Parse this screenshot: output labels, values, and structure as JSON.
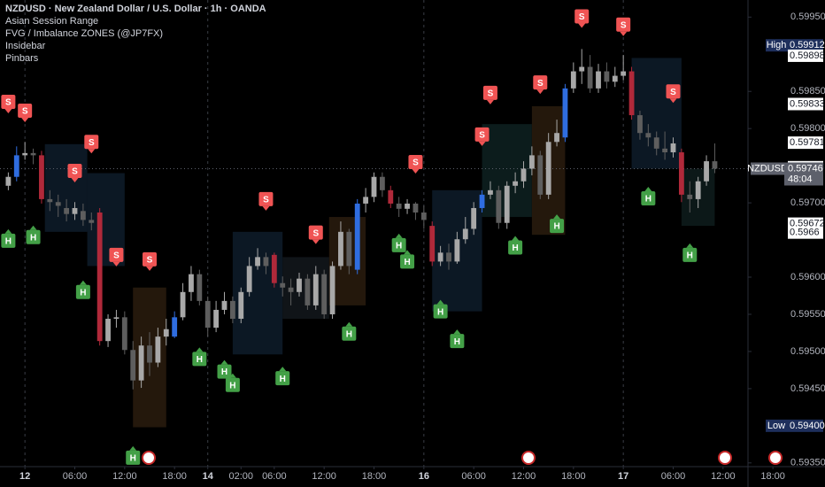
{
  "chart_data": {
    "type": "candlestick",
    "legend": [
      "NZDUSD · New Zealand Dollar / U.S. Dollar · 1h · OANDA",
      "Asian Session Range",
      "FVG / Imbalance ZONES (@JP7FX)",
      "Insidebar",
      "Pinbars"
    ],
    "xlim": [
      -1,
      89
    ],
    "ylim": [
      0.59345,
      0.59973
    ],
    "grid": false,
    "up_color": "#a8a8a8",
    "down_color": "#5e5e5e",
    "blue_color": "#2f6de0",
    "red_color": "#b0293a",
    "blue_candles": [
      1,
      20,
      42,
      57,
      67
    ],
    "red_candles": [
      4,
      11,
      32,
      46,
      51,
      75,
      81
    ],
    "open": [
      0.59723,
      0.59735,
      0.59764,
      0.59767,
      0.59764,
      0.59705,
      0.59701,
      0.59693,
      0.59685,
      0.59689,
      0.59677,
      0.59687,
      0.59514,
      0.59544,
      0.59546,
      0.59502,
      0.59461,
      0.59508,
      0.59485,
      0.5952,
      0.5952,
      0.59546,
      0.5958,
      0.59604,
      0.59568,
      0.59532,
      0.59556,
      0.59568,
      0.59544,
      0.5958,
      0.59615,
      0.59627,
      0.5963,
      0.59592,
      0.59586,
      0.5958,
      0.59598,
      0.59562,
      0.59604,
      0.5955,
      0.59615,
      0.59661,
      0.5961,
      0.59699,
      0.59708,
      0.59735,
      0.59717,
      0.59699,
      0.59692,
      0.59699,
      0.59687,
      0.59669,
      0.59621,
      0.59633,
      0.59621,
      0.59651,
      0.59665,
      0.59693,
      0.59711,
      0.59717,
      0.59673,
      0.59723,
      0.59729,
      0.59746,
      0.59764,
      0.59711,
      0.59782,
      0.59788,
      0.59854,
      0.59877,
      0.59883,
      0.59854,
      0.59877,
      0.59863,
      0.59871,
      0.59877,
      0.59818,
      0.59794,
      0.59788,
      0.59773,
      0.59768,
      0.59768,
      0.59711,
      0.59705,
      0.59729,
      0.59756
    ],
    "high": [
      0.59741,
      0.59776,
      0.59782,
      0.59773,
      0.5977,
      0.59717,
      0.59711,
      0.59705,
      0.59701,
      0.59699,
      0.59687,
      0.59693,
      0.5955,
      0.59556,
      0.59554,
      0.59514,
      0.5952,
      0.59526,
      0.59532,
      0.59544,
      0.59554,
      0.59592,
      0.59615,
      0.5961,
      0.59574,
      0.59568,
      0.5958,
      0.59574,
      0.59586,
      0.59627,
      0.59639,
      0.59633,
      0.59633,
      0.59601,
      0.59598,
      0.59606,
      0.59604,
      0.59615,
      0.5961,
      0.59621,
      0.59675,
      0.59665,
      0.59705,
      0.5972,
      0.59741,
      0.59741,
      0.59723,
      0.59708,
      0.59705,
      0.59701,
      0.59696,
      0.59675,
      0.59642,
      0.59645,
      0.59661,
      0.59681,
      0.59701,
      0.59717,
      0.59729,
      0.59723,
      0.59729,
      0.59741,
      0.59756,
      0.59776,
      0.5977,
      0.59794,
      0.59812,
      0.5986,
      0.59889,
      0.59907,
      0.59899,
      0.59887,
      0.59889,
      0.59883,
      0.59899,
      0.59883,
      0.59824,
      0.59806,
      0.59796,
      0.59796,
      0.59788,
      0.59773,
      0.59729,
      0.59735,
      0.59764,
      0.5978
    ],
    "low": [
      0.59717,
      0.59729,
      0.59758,
      0.59752,
      0.59699,
      0.59689,
      0.59681,
      0.59675,
      0.59677,
      0.59669,
      0.59663,
      0.59508,
      0.59506,
      0.59532,
      0.59496,
      0.59449,
      0.59451,
      0.59467,
      0.59479,
      0.59508,
      0.59518,
      0.59542,
      0.59568,
      0.59562,
      0.5952,
      0.59526,
      0.5955,
      0.59538,
      0.59538,
      0.59574,
      0.5961,
      0.59604,
      0.59586,
      0.59574,
      0.59562,
      0.59574,
      0.59556,
      0.59556,
      0.59544,
      0.59544,
      0.5961,
      0.59604,
      0.59604,
      0.59687,
      0.59701,
      0.59708,
      0.59693,
      0.59681,
      0.59685,
      0.59677,
      0.59665,
      0.59615,
      0.59615,
      0.5961,
      0.59618,
      0.59645,
      0.59657,
      0.59687,
      0.59705,
      0.59665,
      0.59665,
      0.59713,
      0.5972,
      0.59737,
      0.59705,
      0.59705,
      0.59776,
      0.59782,
      0.59848,
      0.5986,
      0.59848,
      0.59848,
      0.59854,
      0.59856,
      0.59865,
      0.59812,
      0.59785,
      0.59776,
      0.59764,
      0.59758,
      0.59761,
      0.59701,
      0.59687,
      0.59693,
      0.59723,
      0.5974
    ],
    "close": [
      0.59735,
      0.59764,
      0.59767,
      0.59764,
      0.59705,
      0.59701,
      0.59696,
      0.59685,
      0.59693,
      0.59677,
      0.59673,
      0.59514,
      0.59544,
      0.59546,
      0.59502,
      0.59461,
      0.59508,
      0.59485,
      0.5952,
      0.5953,
      0.59546,
      0.5958,
      0.59604,
      0.59568,
      0.59532,
      0.59556,
      0.59568,
      0.59544,
      0.5958,
      0.59615,
      0.59627,
      0.59615,
      0.59592,
      0.59586,
      0.5958,
      0.59598,
      0.59562,
      0.59604,
      0.5955,
      0.59615,
      0.59661,
      0.59615,
      0.59699,
      0.59708,
      0.59735,
      0.59717,
      0.59699,
      0.59692,
      0.59699,
      0.59687,
      0.59677,
      0.59621,
      0.59633,
      0.59621,
      0.59651,
      0.59665,
      0.59693,
      0.59711,
      0.59717,
      0.59673,
      0.59723,
      0.59729,
      0.59746,
      0.59764,
      0.59711,
      0.59782,
      0.59794,
      0.59854,
      0.59877,
      0.59883,
      0.59854,
      0.59877,
      0.59863,
      0.59871,
      0.59877,
      0.59818,
      0.59794,
      0.59788,
      0.59773,
      0.59768,
      0.5978,
      0.59711,
      0.59705,
      0.59729,
      0.59756,
      0.59746
    ],
    "zones": [
      {
        "from": 4.4,
        "to": 9.5,
        "top": 0.59779,
        "bottom": 0.59661,
        "color": "#0c1824"
      },
      {
        "from": 9.5,
        "to": 14,
        "top": 0.5974,
        "bottom": 0.59615,
        "color": "#0c1824"
      },
      {
        "from": 15,
        "to": 19,
        "top": 0.59586,
        "bottom": 0.59398,
        "color": "#24180c"
      },
      {
        "from": 27,
        "to": 33,
        "top": 0.59661,
        "bottom": 0.59496,
        "color": "#0c1824"
      },
      {
        "from": 33,
        "to": 38.6,
        "top": 0.59627,
        "bottom": 0.59544,
        "color": "#101418"
      },
      {
        "from": 38.6,
        "to": 43,
        "top": 0.59681,
        "bottom": 0.59562,
        "color": "#24180c"
      },
      {
        "from": 51,
        "to": 57,
        "top": 0.59717,
        "bottom": 0.59554,
        "color": "#0c1824"
      },
      {
        "from": 57,
        "to": 63,
        "top": 0.59806,
        "bottom": 0.59681,
        "color": "#0c1c1c"
      },
      {
        "from": 63,
        "to": 67,
        "top": 0.5983,
        "bottom": 0.59657,
        "color": "#24180c"
      },
      {
        "from": 75,
        "to": 81,
        "top": 0.59895,
        "bottom": 0.59746,
        "color": "#0c1824"
      },
      {
        "from": 81,
        "to": 85,
        "top": 0.59746,
        "bottom": 0.59669,
        "color": "#0c1818"
      }
    ],
    "signals": [
      {
        "label": "S",
        "index": 0,
        "price": 0.59836
      },
      {
        "label": "S",
        "index": 2,
        "price": 0.59824
      },
      {
        "label": "S",
        "index": 10,
        "price": 0.59782
      },
      {
        "label": "S",
        "index": 8,
        "price": 0.59743
      },
      {
        "label": "S",
        "index": 13,
        "price": 0.5963
      },
      {
        "label": "S",
        "index": 17,
        "price": 0.59624
      },
      {
        "label": "S",
        "index": 31,
        "price": 0.59705
      },
      {
        "label": "S",
        "index": 37,
        "price": 0.5966
      },
      {
        "label": "S",
        "index": 49,
        "price": 0.59755
      },
      {
        "label": "S",
        "index": 57,
        "price": 0.59792
      },
      {
        "label": "S",
        "index": 58,
        "price": 0.59848
      },
      {
        "label": "S",
        "index": 64,
        "price": 0.59862
      },
      {
        "label": "S",
        "index": 69,
        "price": 0.59951
      },
      {
        "label": "S",
        "index": 74,
        "price": 0.5994
      },
      {
        "label": "S",
        "index": 80,
        "price": 0.5985
      },
      {
        "label": "H",
        "index": 0,
        "price": 0.59649
      },
      {
        "label": "H",
        "index": 3,
        "price": 0.59654
      },
      {
        "label": "H",
        "index": 9,
        "price": 0.5958
      },
      {
        "label": "H",
        "index": 23,
        "price": 0.5949
      },
      {
        "label": "H",
        "index": 26,
        "price": 0.59473
      },
      {
        "label": "H",
        "index": 27,
        "price": 0.59455
      },
      {
        "label": "H",
        "index": 33,
        "price": 0.59464
      },
      {
        "label": "H",
        "index": 41,
        "price": 0.59524
      },
      {
        "label": "H",
        "index": 47,
        "price": 0.59643
      },
      {
        "label": "H",
        "index": 48,
        "price": 0.59621
      },
      {
        "label": "H",
        "index": 52,
        "price": 0.59554
      },
      {
        "label": "H",
        "index": 54,
        "price": 0.59514
      },
      {
        "label": "H",
        "index": 61,
        "price": 0.5964
      },
      {
        "label": "H",
        "index": 66,
        "price": 0.59669
      },
      {
        "label": "H",
        "index": 77,
        "price": 0.59706
      },
      {
        "label": "H",
        "index": 82,
        "price": 0.5963
      },
      {
        "label": "H",
        "index": 15,
        "price": 0.59357
      }
    ],
    "current_price": 0.59746,
    "yticks": [
      {
        "value": 0.5995,
        "label": "0.59950"
      },
      {
        "value": 0.5985,
        "label": "0.59850"
      },
      {
        "value": 0.598,
        "label": "0.59800"
      },
      {
        "value": 0.597,
        "label": "0.59700"
      },
      {
        "value": 0.596,
        "label": "0.59600"
      },
      {
        "value": 0.5955,
        "label": "0.59550"
      },
      {
        "value": 0.595,
        "label": "0.59500"
      },
      {
        "value": 0.5945,
        "label": "0.59450"
      },
      {
        "value": 0.5935,
        "label": "0.59350"
      }
    ],
    "xticks": [
      {
        "value": 2,
        "label": "12"
      },
      {
        "value": 8,
        "label": "06:00"
      },
      {
        "value": 14,
        "label": "12:00"
      },
      {
        "value": 20,
        "label": "18:00"
      },
      {
        "value": 24,
        "label": "14"
      },
      {
        "value": 28,
        "label": "02:00"
      },
      {
        "value": 32,
        "label": "06:00"
      },
      {
        "value": 38,
        "label": "12:00"
      },
      {
        "value": 44,
        "label": "18:00"
      },
      {
        "value": 50,
        "label": "16"
      },
      {
        "value": 56,
        "label": "06:00"
      },
      {
        "value": 62,
        "label": "12:00"
      },
      {
        "value": 68,
        "label": "18:00"
      },
      {
        "value": 74,
        "label": "17"
      },
      {
        "value": 80,
        "label": "06:00"
      },
      {
        "value": 86,
        "label": "12:00"
      },
      {
        "value": 92,
        "label": "18:00"
      }
    ],
    "price_badges": [
      {
        "tag": "High",
        "price": 0.59912
      },
      {
        "price": 0.59898
      },
      {
        "price": 0.59833
      },
      {
        "price": 0.59781
      },
      {
        "price": 0.59748
      },
      {
        "tag": "NZDUSD",
        "price": 0.59746,
        "timer": "48:04"
      },
      {
        "price": 0.59672
      },
      {
        "price": 0.5966
      },
      {
        "tag": "Low",
        "price": {
          "value": 0.594,
          "label": "0.59400"
        }
      }
    ]
  }
}
